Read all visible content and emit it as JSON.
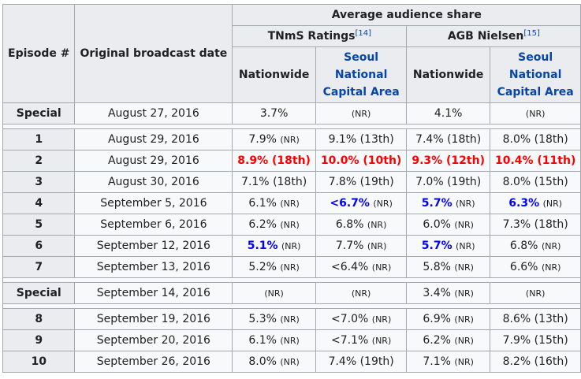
{
  "header": {
    "episode": "Episode #",
    "broadcast_date": "Original broadcast date",
    "average_share": "Average audience share",
    "tnms": "TNmS Ratings",
    "tnms_ref": "[14]",
    "agb": "AGB Nielsen",
    "agb_ref": "[15]",
    "nationwide": "Nationwide",
    "seoul": "Seoul National Capital Area"
  },
  "groups": [
    [
      {
        "episode": "Special",
        "date": "August 27, 2016",
        "cells": [
          {
            "value": "3.7%",
            "rank": "",
            "style": "normal"
          },
          {
            "value": "",
            "rank": "(NR)",
            "style": "normal"
          },
          {
            "value": "4.1%",
            "rank": "",
            "style": "normal"
          },
          {
            "value": "",
            "rank": "(NR)",
            "style": "normal"
          }
        ]
      }
    ],
    [
      {
        "episode": "1",
        "date": "August 29, 2016",
        "cells": [
          {
            "value": "7.9%",
            "rank": "(NR)",
            "style": "normal"
          },
          {
            "value": "9.1% (13th)",
            "rank": "",
            "style": "normal"
          },
          {
            "value": "7.4% (18th)",
            "rank": "",
            "style": "normal"
          },
          {
            "value": "8.0% (18th)",
            "rank": "",
            "style": "normal"
          }
        ]
      },
      {
        "episode": "2",
        "date": "August 29, 2016",
        "cells": [
          {
            "value": "8.9% (18th)",
            "rank": "",
            "style": "red"
          },
          {
            "value": "10.0% (10th)",
            "rank": "",
            "style": "red"
          },
          {
            "value": "9.3% (12th)",
            "rank": "",
            "style": "red"
          },
          {
            "value": "10.4% (11th)",
            "rank": "",
            "style": "red"
          }
        ]
      },
      {
        "episode": "3",
        "date": "August 30, 2016",
        "cells": [
          {
            "value": "7.1% (18th)",
            "rank": "",
            "style": "normal"
          },
          {
            "value": "7.8% (19th)",
            "rank": "",
            "style": "normal"
          },
          {
            "value": "7.0% (19th)",
            "rank": "",
            "style": "normal"
          },
          {
            "value": "8.0% (15th)",
            "rank": "",
            "style": "normal"
          }
        ]
      },
      {
        "episode": "4",
        "date": "September 5, 2016",
        "cells": [
          {
            "value": "6.1%",
            "rank": "(NR)",
            "style": "normal"
          },
          {
            "value": "<6.7%",
            "rank": "(NR)",
            "style": "blue"
          },
          {
            "value": "5.7%",
            "rank": "(NR)",
            "style": "blue"
          },
          {
            "value": "6.3%",
            "rank": "(NR)",
            "style": "blue"
          }
        ]
      },
      {
        "episode": "5",
        "date": "September 6, 2016",
        "cells": [
          {
            "value": "6.2%",
            "rank": "(NR)",
            "style": "normal"
          },
          {
            "value": "6.8%",
            "rank": "(NR)",
            "style": "normal"
          },
          {
            "value": "6.0%",
            "rank": "(NR)",
            "style": "normal"
          },
          {
            "value": "7.3% (18th)",
            "rank": "",
            "style": "normal"
          }
        ]
      },
      {
        "episode": "6",
        "date": "September 12, 2016",
        "cells": [
          {
            "value": "5.1%",
            "rank": "(NR)",
            "style": "blue"
          },
          {
            "value": "7.7%",
            "rank": "(NR)",
            "style": "normal"
          },
          {
            "value": "5.7%",
            "rank": "(NR)",
            "style": "blue"
          },
          {
            "value": "6.8%",
            "rank": "(NR)",
            "style": "normal"
          }
        ]
      },
      {
        "episode": "7",
        "date": "September 13, 2016",
        "cells": [
          {
            "value": "5.2%",
            "rank": "(NR)",
            "style": "normal"
          },
          {
            "value": "<6.4%",
            "rank": "(NR)",
            "style": "normal"
          },
          {
            "value": "5.8%",
            "rank": "(NR)",
            "style": "normal"
          },
          {
            "value": "6.6%",
            "rank": "(NR)",
            "style": "normal"
          }
        ]
      }
    ],
    [
      {
        "episode": "Special",
        "date": "September 14, 2016",
        "cells": [
          {
            "value": "",
            "rank": "(NR)",
            "style": "normal"
          },
          {
            "value": "",
            "rank": "(NR)",
            "style": "normal"
          },
          {
            "value": "3.4%",
            "rank": "(NR)",
            "style": "normal"
          },
          {
            "value": "",
            "rank": "(NR)",
            "style": "normal"
          }
        ]
      }
    ],
    [
      {
        "episode": "8",
        "date": "September 19, 2016",
        "cells": [
          {
            "value": "5.3%",
            "rank": "(NR)",
            "style": "normal"
          },
          {
            "value": "<7.0%",
            "rank": "(NR)",
            "style": "normal"
          },
          {
            "value": "6.9%",
            "rank": "(NR)",
            "style": "normal"
          },
          {
            "value": "8.6% (13th)",
            "rank": "",
            "style": "normal"
          }
        ]
      },
      {
        "episode": "9",
        "date": "September 20, 2016",
        "cells": [
          {
            "value": "6.1%",
            "rank": "(NR)",
            "style": "normal"
          },
          {
            "value": "<7.1%",
            "rank": "(NR)",
            "style": "normal"
          },
          {
            "value": "6.2%",
            "rank": "(NR)",
            "style": "normal"
          },
          {
            "value": "7.9% (15th)",
            "rank": "",
            "style": "normal"
          }
        ]
      },
      {
        "episode": "10",
        "date": "September 26, 2016",
        "cells": [
          {
            "value": "8.0%",
            "rank": "(NR)",
            "style": "normal"
          },
          {
            "value": "7.4% (19th)",
            "rank": "",
            "style": "normal"
          },
          {
            "value": "7.1%",
            "rank": "(NR)",
            "style": "normal"
          },
          {
            "value": "8.2% (16th)",
            "rank": "",
            "style": "normal"
          }
        ]
      }
    ]
  ]
}
